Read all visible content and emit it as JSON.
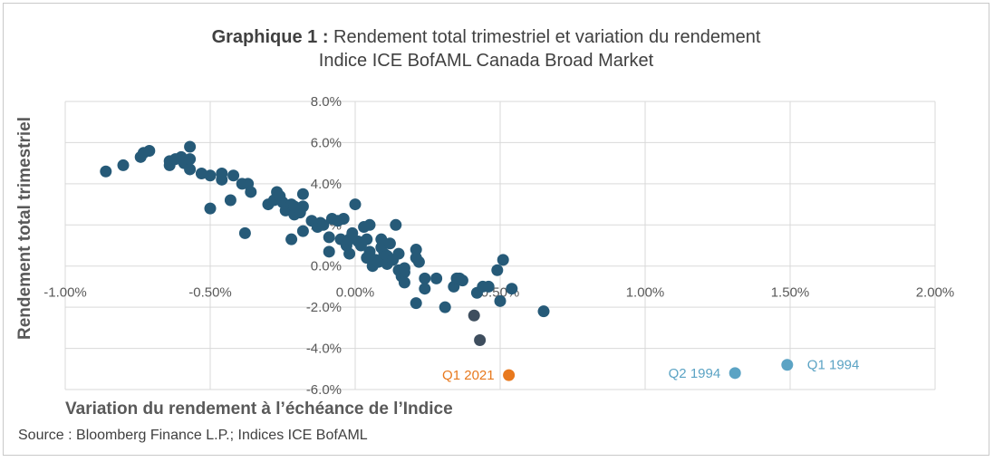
{
  "title_bold": "Graphique 1 :",
  "title_rest": " Rendement total trimestriel et variation du rendement",
  "subtitle": "Indice ICE BofAML Canada Broad Market",
  "source": "Source : Bloomberg Finance L.P.; Indices ICE BofAML",
  "colors": {
    "main": "#265a78",
    "dark": "#3e4e5e",
    "highlight_2021": "#e8791e",
    "highlight_1994": "#5ba3c4",
    "grid": "#d9d9d9"
  },
  "chart_data": {
    "type": "scatter",
    "xlabel": "Variation du rendement à l’échéance de l’Indice",
    "ylabel": "Rendement total trimestriel",
    "xlim": [
      -1.0,
      2.0
    ],
    "ylim": [
      -6.0,
      8.0
    ],
    "x_ticks": [
      -1.0,
      -0.5,
      0.0,
      0.5,
      1.0,
      1.5,
      2.0
    ],
    "x_tick_labels": [
      "-1.00%",
      "-0.50%",
      "0.00%",
      "0.50%",
      "1.00%",
      "1.50%",
      "2.00%"
    ],
    "y_ticks": [
      8,
      6,
      4,
      2,
      0,
      -2,
      -4,
      -6
    ],
    "y_tick_labels": [
      "8.0%",
      "6.0%",
      "4.0%",
      "2.0%",
      "0.0%",
      "-2.0%",
      "-4.0%",
      "-6.0%"
    ],
    "grid": "vertical and horizontal",
    "points": [
      [
        -0.86,
        4.6
      ],
      [
        -0.8,
        4.9
      ],
      [
        -0.74,
        5.3
      ],
      [
        -0.73,
        5.5
      ],
      [
        -0.71,
        5.6
      ],
      [
        -0.64,
        4.9
      ],
      [
        -0.64,
        5.1
      ],
      [
        -0.62,
        5.2
      ],
      [
        -0.6,
        5.3
      ],
      [
        -0.59,
        5.0
      ],
      [
        -0.57,
        5.8
      ],
      [
        -0.57,
        5.2
      ],
      [
        -0.57,
        4.7
      ],
      [
        -0.53,
        4.5
      ],
      [
        -0.5,
        4.4
      ],
      [
        -0.5,
        2.8
      ],
      [
        -0.46,
        4.5
      ],
      [
        -0.46,
        4.2
      ],
      [
        -0.42,
        4.4
      ],
      [
        -0.43,
        3.2
      ],
      [
        -0.39,
        4.0
      ],
      [
        -0.37,
        4.0
      ],
      [
        -0.36,
        3.6
      ],
      [
        -0.38,
        1.6
      ],
      [
        -0.3,
        3.0
      ],
      [
        -0.28,
        3.2
      ],
      [
        -0.27,
        3.6
      ],
      [
        -0.26,
        3.4
      ],
      [
        -0.25,
        3.1
      ],
      [
        -0.24,
        2.7
      ],
      [
        -0.22,
        3.0
      ],
      [
        -0.21,
        2.5
      ],
      [
        -0.21,
        2.9
      ],
      [
        -0.19,
        2.6
      ],
      [
        -0.18,
        2.9
      ],
      [
        -0.18,
        3.5
      ],
      [
        -0.22,
        1.3
      ],
      [
        -0.18,
        1.7
      ],
      [
        -0.15,
        2.2
      ],
      [
        -0.13,
        1.9
      ],
      [
        -0.12,
        2.1
      ],
      [
        -0.11,
        2.0
      ],
      [
        -0.09,
        1.4
      ],
      [
        -0.08,
        2.3
      ],
      [
        -0.06,
        2.2
      ],
      [
        -0.04,
        2.3
      ],
      [
        -0.09,
        0.7
      ],
      [
        -0.05,
        1.3
      ],
      [
        -0.03,
        1.0
      ],
      [
        -0.02,
        0.6
      ],
      [
        -0.02,
        1.3
      ],
      [
        -0.01,
        1.6
      ],
      [
        0.0,
        3.0
      ],
      [
        0.01,
        1.2
      ],
      [
        0.02,
        1.0
      ],
      [
        0.03,
        1.9
      ],
      [
        0.04,
        1.3
      ],
      [
        0.04,
        0.4
      ],
      [
        0.05,
        2.0
      ],
      [
        0.05,
        0.7
      ],
      [
        0.06,
        0.0
      ],
      [
        0.07,
        0.3
      ],
      [
        0.08,
        0.2
      ],
      [
        0.09,
        0.9
      ],
      [
        0.09,
        1.3
      ],
      [
        0.1,
        0.6
      ],
      [
        0.11,
        0.5
      ],
      [
        0.11,
        0.1
      ],
      [
        0.12,
        1.1
      ],
      [
        0.14,
        2.0
      ],
      [
        0.15,
        0.6
      ],
      [
        0.13,
        0.3
      ],
      [
        0.15,
        -0.2
      ],
      [
        0.16,
        -0.5
      ],
      [
        0.17,
        -0.3
      ],
      [
        0.17,
        -0.1
      ],
      [
        0.17,
        -0.8
      ],
      [
        0.21,
        0.8
      ],
      [
        0.21,
        0.4
      ],
      [
        0.22,
        0.2
      ],
      [
        0.21,
        -1.8
      ],
      [
        0.24,
        -0.6
      ],
      [
        0.24,
        -1.1
      ],
      [
        0.28,
        -0.6
      ],
      [
        0.31,
        -2.0
      ],
      [
        0.34,
        -1.0
      ],
      [
        0.35,
        -0.6
      ],
      [
        0.36,
        -0.6
      ],
      [
        0.37,
        -0.7
      ],
      [
        0.42,
        -1.3
      ],
      [
        0.44,
        -1.0
      ],
      [
        0.46,
        -1.0
      ],
      [
        0.49,
        -0.2
      ],
      [
        0.51,
        0.3
      ],
      [
        0.5,
        -1.7
      ],
      [
        0.54,
        -1.1
      ],
      [
        0.65,
        -2.2
      ]
    ],
    "dark_points": [
      [
        0.41,
        -2.4
      ],
      [
        0.43,
        -3.6
      ]
    ],
    "highlights": [
      {
        "label": "Q1 2021",
        "x": 0.53,
        "y": -5.3
      },
      {
        "label": "Q2 1994",
        "x": 1.31,
        "y": -5.2
      },
      {
        "label": "Q1 1994",
        "x": 1.49,
        "y": -4.8
      }
    ]
  }
}
